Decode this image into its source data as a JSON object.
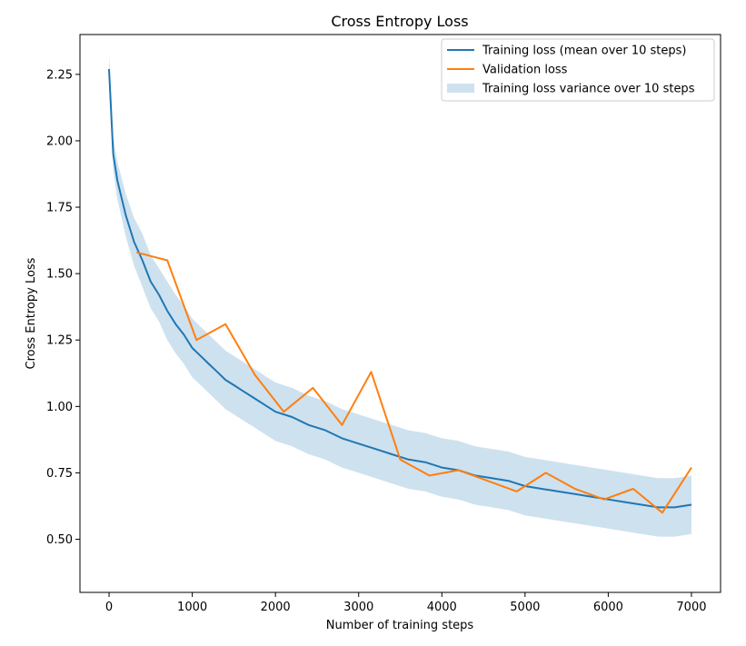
{
  "chart_data": {
    "type": "line",
    "title": "Cross Entropy Loss",
    "xlabel": "Number of training steps",
    "ylabel": "Cross Entropy Loss",
    "xlim": [
      -350,
      7350
    ],
    "ylim": [
      0.3,
      2.4
    ],
    "x_ticks": [
      0,
      1000,
      2000,
      3000,
      4000,
      5000,
      6000,
      7000
    ],
    "y_ticks": [
      0.5,
      0.75,
      1.0,
      1.25,
      1.5,
      1.75,
      2.0,
      2.25
    ],
    "x_tick_labels": [
      "0",
      "1000",
      "2000",
      "3000",
      "4000",
      "5000",
      "6000",
      "7000"
    ],
    "y_tick_labels": [
      "0.50",
      "0.75",
      "1.00",
      "1.25",
      "1.50",
      "1.75",
      "2.00",
      "2.25"
    ],
    "grid": false,
    "legend_placement": "top-right",
    "legend": [
      {
        "label": "Training loss (mean over 10 steps)",
        "kind": "line",
        "color": "#1f77b4"
      },
      {
        "label": "Validation loss",
        "kind": "line",
        "color": "#ff7f0e"
      },
      {
        "label": "Training loss variance over 10 steps",
        "kind": "band",
        "color": "#1f77b4"
      }
    ],
    "series": [
      {
        "name": "Training loss (mean over 10 steps)",
        "color": "#1f77b4",
        "x": [
          0,
          50,
          100,
          200,
          300,
          400,
          500,
          600,
          700,
          800,
          900,
          1000,
          1100,
          1200,
          1300,
          1400,
          1500,
          1600,
          1700,
          1800,
          1900,
          2000,
          2200,
          2400,
          2600,
          2800,
          3000,
          3200,
          3400,
          3600,
          3800,
          4000,
          4200,
          4400,
          4600,
          4800,
          5000,
          5200,
          5400,
          5600,
          5800,
          6000,
          6200,
          6400,
          6600,
          6800,
          7000
        ],
        "y": [
          2.27,
          1.95,
          1.85,
          1.72,
          1.62,
          1.55,
          1.47,
          1.42,
          1.36,
          1.31,
          1.27,
          1.22,
          1.19,
          1.16,
          1.13,
          1.1,
          1.08,
          1.06,
          1.04,
          1.02,
          1.0,
          0.98,
          0.96,
          0.93,
          0.91,
          0.88,
          0.86,
          0.84,
          0.82,
          0.8,
          0.79,
          0.77,
          0.76,
          0.74,
          0.73,
          0.72,
          0.7,
          0.69,
          0.68,
          0.67,
          0.66,
          0.65,
          0.64,
          0.63,
          0.62,
          0.62,
          0.63
        ]
      },
      {
        "name": "Validation loss",
        "color": "#ff7f0e",
        "x": [
          330,
          700,
          1050,
          1400,
          1750,
          2100,
          2450,
          2800,
          3150,
          3500,
          3850,
          4200,
          4550,
          4900,
          5250,
          5600,
          5950,
          6300,
          6650,
          7000
        ],
        "y": [
          1.58,
          1.55,
          1.25,
          1.31,
          1.12,
          0.98,
          1.07,
          0.93,
          1.13,
          0.8,
          0.74,
          0.76,
          0.72,
          0.68,
          0.75,
          0.69,
          0.65,
          0.69,
          0.6,
          0.77
        ]
      }
    ],
    "band": {
      "name": "Training loss variance over 10 steps",
      "color": "#1f77b4",
      "half_width": [
        0.06,
        0.06,
        0.07,
        0.08,
        0.09,
        0.1,
        0.1,
        0.1,
        0.11,
        0.11,
        0.11,
        0.11,
        0.11,
        0.11,
        0.11,
        0.11,
        0.11,
        0.11,
        0.11,
        0.11,
        0.11,
        0.11,
        0.11,
        0.11,
        0.11,
        0.11,
        0.11,
        0.11,
        0.11,
        0.11,
        0.11,
        0.11,
        0.11,
        0.11,
        0.11,
        0.11,
        0.11,
        0.11,
        0.11,
        0.11,
        0.11,
        0.11,
        0.11,
        0.11,
        0.11,
        0.11,
        0.11
      ]
    }
  }
}
